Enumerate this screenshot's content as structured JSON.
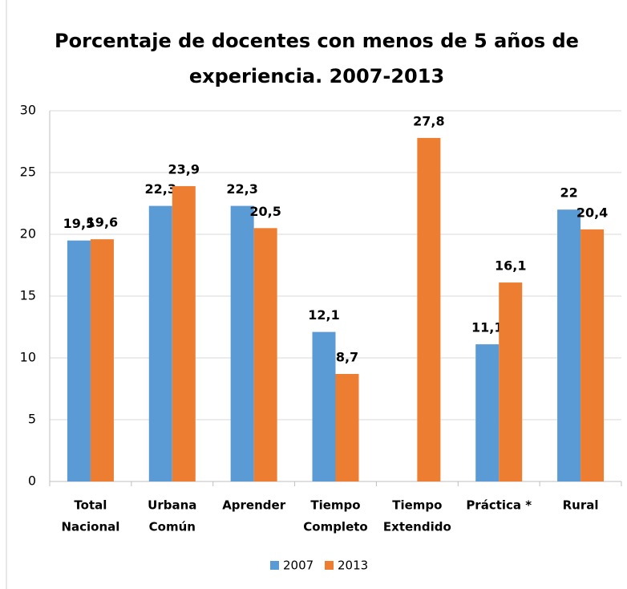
{
  "chart_data": {
    "type": "bar",
    "title": [
      "Porcentaje de docentes con menos de 5 años de",
      "experiencia. 2007-2013"
    ],
    "categories": [
      [
        "Total",
        "Nacional"
      ],
      [
        "Urbana",
        "Común"
      ],
      [
        "Aprender"
      ],
      [
        "Tiempo",
        "Completo"
      ],
      [
        "Tiempo",
        "Extendido"
      ],
      [
        "Práctica *"
      ],
      [
        "Rural"
      ]
    ],
    "series": [
      {
        "name": "2007",
        "color": "#5b9bd5",
        "values": [
          19.5,
          22.3,
          22.3,
          12.1,
          null,
          11.1,
          22
        ],
        "value_labels": [
          "19,5",
          "22,3",
          "22,3",
          "12,1",
          null,
          "11,1",
          "22"
        ]
      },
      {
        "name": "2013",
        "color": "#ed7d31",
        "values": [
          19.6,
          23.9,
          20.5,
          8.7,
          27.8,
          16.1,
          20.4
        ],
        "value_labels": [
          "19,6",
          "23,9",
          "20,5",
          "8,7",
          "27,8",
          "16,1",
          "20,4"
        ]
      }
    ],
    "ylim": [
      0,
      30
    ],
    "yticks": [
      0,
      5,
      10,
      15,
      20,
      25,
      30
    ],
    "grid": true,
    "legend": "bottom"
  }
}
